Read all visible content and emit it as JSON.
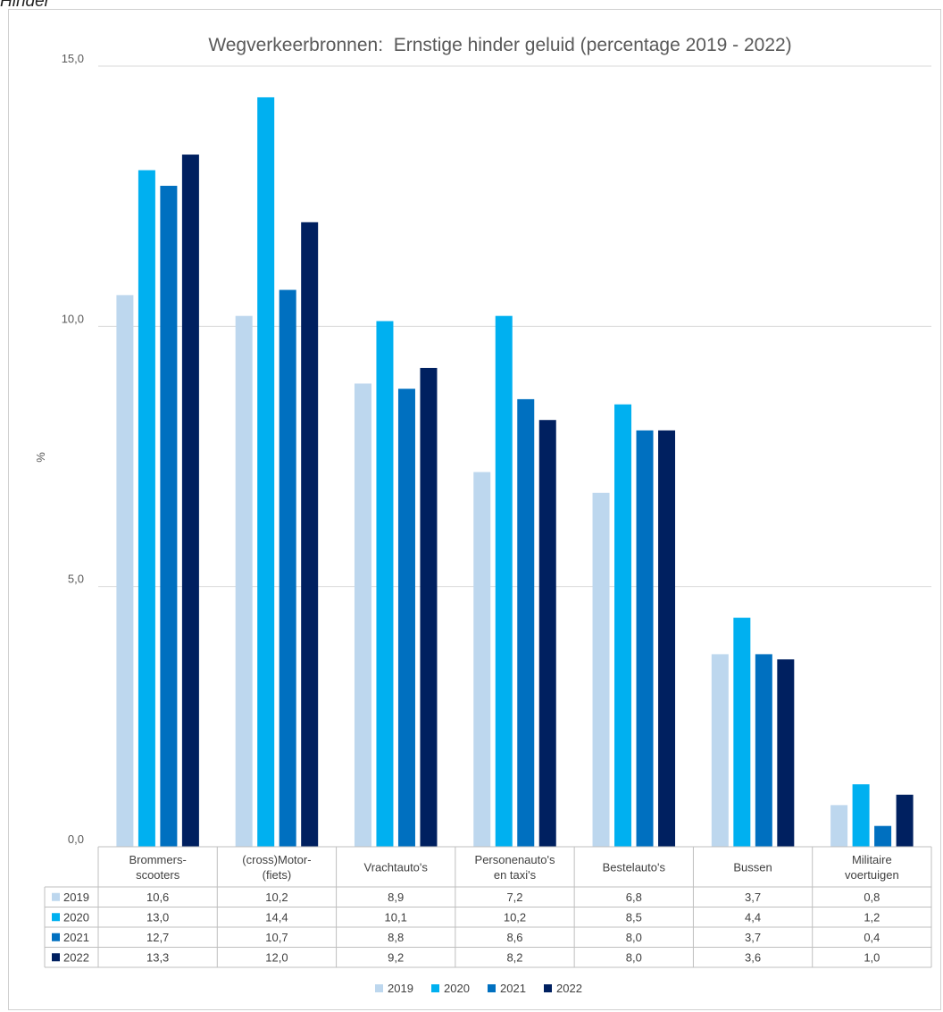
{
  "page_heading": "Hinder",
  "colors": {
    "2019": "#bdd7ee",
    "2020": "#00b0f0",
    "2021": "#0070c0",
    "2022": "#002060",
    "grid": "#d9d9d9",
    "table_border": "#bfbfbf"
  },
  "chart_data": {
    "type": "bar",
    "title": "Wegverkeerbronnen:  Ernstige hinder geluid (percentage 2019 - 2022)",
    "ylabel": "%",
    "xlabel": "",
    "ylim": [
      0,
      15
    ],
    "yticks": [
      "0,0",
      "5,0",
      "10,0",
      "15,0"
    ],
    "grid": true,
    "legend_position": "bottom",
    "categories": [
      [
        "Brommers-",
        "scooters"
      ],
      [
        "(cross)Motor-",
        "(fiets)"
      ],
      [
        "Vrachtauto's"
      ],
      [
        "Personenauto's",
        "en taxi's"
      ],
      [
        "Bestelauto's"
      ],
      [
        "Bussen"
      ],
      [
        "Militaire",
        "voertuigen"
      ]
    ],
    "series": [
      {
        "name": "2019",
        "values": [
          10.6,
          10.2,
          8.9,
          7.2,
          6.8,
          3.7,
          0.8
        ],
        "labels": [
          "10,6",
          "10,2",
          "8,9",
          "7,2",
          "6,8",
          "3,7",
          "0,8"
        ]
      },
      {
        "name": "2020",
        "values": [
          13.0,
          14.4,
          10.1,
          10.2,
          8.5,
          4.4,
          1.2
        ],
        "labels": [
          "13,0",
          "14,4",
          "10,1",
          "10,2",
          "8,5",
          "4,4",
          "1,2"
        ]
      },
      {
        "name": "2021",
        "values": [
          12.7,
          10.7,
          8.8,
          8.6,
          8.0,
          3.7,
          0.4
        ],
        "labels": [
          "12,7",
          "10,7",
          "8,8",
          "8,6",
          "8,0",
          "3,7",
          "0,4"
        ]
      },
      {
        "name": "2022",
        "values": [
          13.3,
          12.0,
          9.2,
          8.2,
          8.0,
          3.6,
          1.0
        ],
        "labels": [
          "13,3",
          "12,0",
          "9,2",
          "8,2",
          "8,0",
          "3,6",
          "1,0"
        ]
      }
    ]
  }
}
